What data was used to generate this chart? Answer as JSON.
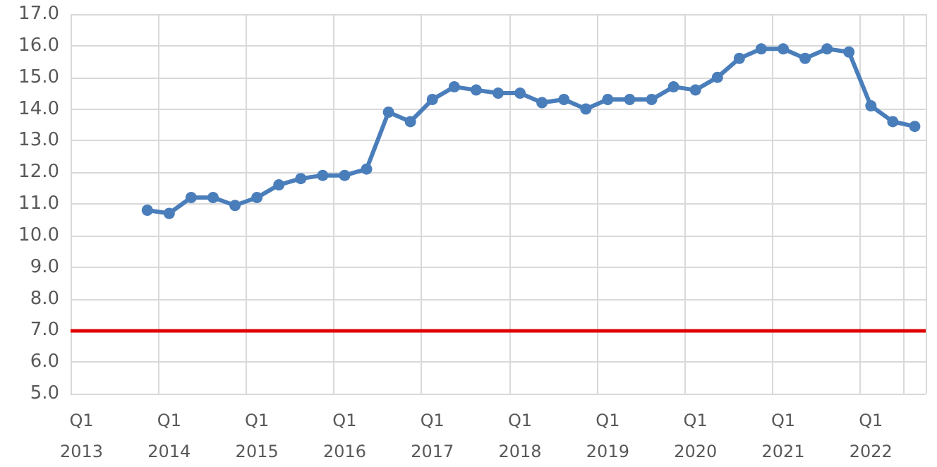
{
  "chart_data": {
    "type": "line",
    "categories": [
      "Q1\n2013",
      null,
      null,
      null,
      "Q1\n2014",
      null,
      null,
      null,
      "Q1\n2015",
      null,
      null,
      null,
      "Q1\n2016",
      null,
      null,
      null,
      "Q1\n2017",
      null,
      null,
      null,
      "Q1\n2018",
      null,
      null,
      null,
      "Q1\n2019",
      null,
      null,
      null,
      "Q1\n2020",
      null,
      null,
      null,
      "Q1\n2021",
      null,
      null,
      null,
      "Q1\n2022",
      null,
      null
    ],
    "series": [
      {
        "color": "#4a7ebb",
        "values": [
          null,
          null,
          null,
          10.8,
          10.7,
          11.2,
          11.2,
          10.95,
          11.2,
          11.6,
          11.8,
          11.9,
          11.9,
          12.1,
          13.9,
          13.6,
          14.3,
          14.7,
          14.6,
          14.5,
          14.5,
          14.2,
          14.3,
          14.0,
          14.3,
          14.3,
          14.3,
          14.7,
          14.6,
          15.0,
          15.6,
          15.9,
          15.9,
          15.6,
          15.9,
          15.8,
          14.1,
          13.6,
          13.45
        ]
      }
    ],
    "ylim": [
      5,
      17
    ],
    "yticks": [
      {
        "value": 5,
        "label": "5.0"
      },
      {
        "value": 6,
        "label": "6.0"
      },
      {
        "value": 7,
        "label": "7.0"
      },
      {
        "value": 8,
        "label": "8.0"
      },
      {
        "value": 9,
        "label": "9.0"
      },
      {
        "value": 10,
        "label": "10.0"
      },
      {
        "value": 11,
        "label": "11.0"
      },
      {
        "value": 12,
        "label": "12.0"
      },
      {
        "value": 13,
        "label": "13.0"
      },
      {
        "value": 14,
        "label": "14.0"
      },
      {
        "value": 15,
        "label": "15.0"
      },
      {
        "value": 16,
        "label": "16.0"
      },
      {
        "value": 17,
        "label": "17.0"
      }
    ],
    "ref_lines": [
      {
        "axis": "y",
        "value": 7,
        "color": "#e00000"
      }
    ],
    "grid": true,
    "marker": "circle",
    "line_style": "solid"
  }
}
